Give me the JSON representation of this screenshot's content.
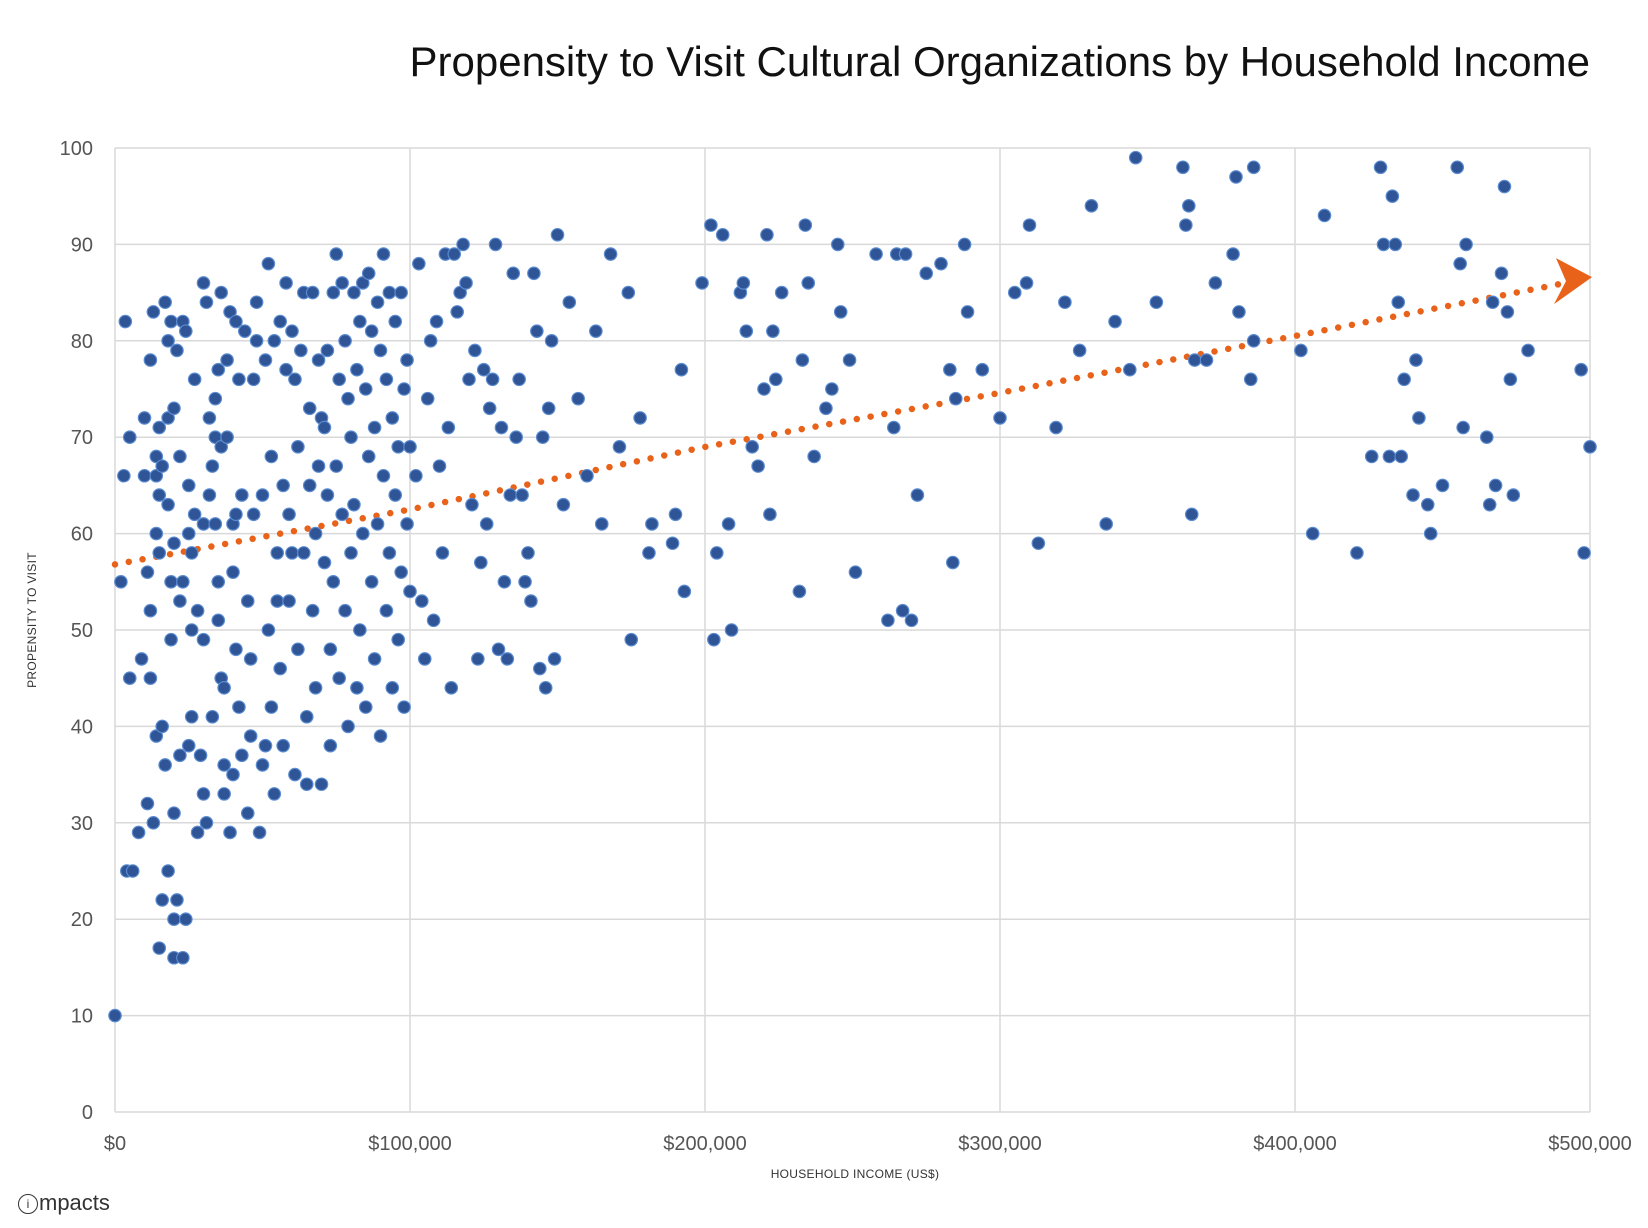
{
  "title": "Propensity to Visit Cultural Organizations by Household Income",
  "logo_text": "mpacts",
  "colors": {
    "point_fill": "#2f5597",
    "point_stroke": "#5b8bd0",
    "trend": "#e8621a",
    "grid": "#d9d9d9"
  },
  "chart_data": {
    "type": "scatter",
    "title": "Propensity to Visit Cultural Organizations by Household Income",
    "xlabel": "HOUSEHOLD INCOME (US$)",
    "ylabel": "PROPENSITY TO VISIT",
    "xlim": [
      0,
      500000
    ],
    "ylim": [
      0,
      100
    ],
    "x_ticks": [
      0,
      100000,
      200000,
      300000,
      400000,
      500000
    ],
    "x_tick_labels": [
      "$0",
      "$100,000",
      "$200,000",
      "$300,000",
      "$400,000",
      "$500,000"
    ],
    "y_ticks": [
      0,
      10,
      20,
      30,
      40,
      50,
      60,
      70,
      80,
      90,
      100
    ],
    "y_tick_labels": [
      "0",
      "10",
      "20",
      "30",
      "40",
      "50",
      "60",
      "70",
      "80",
      "90",
      "100"
    ],
    "grid": true,
    "trendline": {
      "style": "dotted",
      "arrow": true,
      "points": [
        [
          0,
          56.8
        ],
        [
          100000,
          62.5
        ],
        [
          200000,
          69
        ],
        [
          300000,
          74.6
        ],
        [
          400000,
          80.5
        ],
        [
          500000,
          86.5
        ]
      ]
    },
    "points": [
      [
        0,
        10
      ],
      [
        2000,
        55
      ],
      [
        3000,
        66
      ],
      [
        3500,
        82
      ],
      [
        4000,
        25
      ],
      [
        5000,
        45
      ],
      [
        5000,
        70
      ],
      [
        6000,
        25
      ],
      [
        8000,
        29
      ],
      [
        9000,
        47
      ],
      [
        10000,
        66
      ],
      [
        10000,
        72
      ],
      [
        11000,
        32
      ],
      [
        11000,
        56
      ],
      [
        12000,
        52
      ],
      [
        12000,
        78
      ],
      [
        12000,
        45
      ],
      [
        13000,
        30
      ],
      [
        13000,
        83
      ],
      [
        14000,
        39
      ],
      [
        14000,
        68
      ],
      [
        14000,
        60
      ],
      [
        14000,
        66
      ],
      [
        15000,
        17
      ],
      [
        15000,
        64
      ],
      [
        15000,
        58
      ],
      [
        15000,
        71
      ],
      [
        16000,
        40
      ],
      [
        16000,
        22
      ],
      [
        16000,
        67
      ],
      [
        17000,
        84
      ],
      [
        17000,
        36
      ],
      [
        18000,
        25
      ],
      [
        18000,
        72
      ],
      [
        18000,
        80
      ],
      [
        18000,
        63
      ],
      [
        19000,
        55
      ],
      [
        19000,
        82
      ],
      [
        19000,
        49
      ],
      [
        20000,
        20
      ],
      [
        20000,
        16
      ],
      [
        20000,
        31
      ],
      [
        20000,
        73
      ],
      [
        20000,
        59
      ],
      [
        21000,
        79
      ],
      [
        21000,
        22
      ],
      [
        22000,
        68
      ],
      [
        22000,
        53
      ],
      [
        22000,
        37
      ],
      [
        23000,
        16
      ],
      [
        23000,
        82
      ],
      [
        23000,
        55
      ],
      [
        24000,
        20
      ],
      [
        24000,
        81
      ],
      [
        25000,
        38
      ],
      [
        25000,
        65
      ],
      [
        25000,
        60
      ],
      [
        26000,
        41
      ],
      [
        26000,
        50
      ],
      [
        26000,
        58
      ],
      [
        27000,
        76
      ],
      [
        27000,
        62
      ],
      [
        28000,
        29
      ],
      [
        28000,
        52
      ],
      [
        29000,
        37
      ],
      [
        30000,
        86
      ],
      [
        30000,
        61
      ],
      [
        30000,
        33
      ],
      [
        30000,
        49
      ],
      [
        31000,
        84
      ],
      [
        31000,
        30
      ],
      [
        32000,
        72
      ],
      [
        32000,
        64
      ],
      [
        33000,
        41
      ],
      [
        33000,
        67
      ],
      [
        34000,
        74
      ],
      [
        34000,
        70
      ],
      [
        34000,
        61
      ],
      [
        35000,
        77
      ],
      [
        35000,
        55
      ],
      [
        35000,
        51
      ],
      [
        36000,
        85
      ],
      [
        36000,
        45
      ],
      [
        36000,
        69
      ],
      [
        37000,
        33
      ],
      [
        37000,
        36
      ],
      [
        37000,
        44
      ],
      [
        38000,
        70
      ],
      [
        38000,
        78
      ],
      [
        39000,
        83
      ],
      [
        39000,
        29
      ],
      [
        40000,
        61
      ],
      [
        40000,
        35
      ],
      [
        40000,
        56
      ],
      [
        41000,
        82
      ],
      [
        41000,
        48
      ],
      [
        41000,
        62
      ],
      [
        42000,
        76
      ],
      [
        42000,
        42
      ],
      [
        43000,
        37
      ],
      [
        43000,
        64
      ],
      [
        44000,
        81
      ],
      [
        45000,
        53
      ],
      [
        45000,
        31
      ],
      [
        46000,
        39
      ],
      [
        46000,
        47
      ],
      [
        47000,
        62
      ],
      [
        47000,
        76
      ],
      [
        48000,
        80
      ],
      [
        48000,
        84
      ],
      [
        49000,
        29
      ],
      [
        50000,
        64
      ],
      [
        50000,
        36
      ],
      [
        51000,
        78
      ],
      [
        51000,
        38
      ],
      [
        52000,
        88
      ],
      [
        52000,
        50
      ],
      [
        53000,
        68
      ],
      [
        53000,
        42
      ],
      [
        54000,
        80
      ],
      [
        54000,
        33
      ],
      [
        55000,
        53
      ],
      [
        55000,
        58
      ],
      [
        56000,
        82
      ],
      [
        56000,
        46
      ],
      [
        57000,
        65
      ],
      [
        57000,
        38
      ],
      [
        58000,
        77
      ],
      [
        58000,
        86
      ],
      [
        59000,
        62
      ],
      [
        59000,
        53
      ],
      [
        60000,
        81
      ],
      [
        60000,
        58
      ],
      [
        61000,
        76
      ],
      [
        61000,
        35
      ],
      [
        62000,
        69
      ],
      [
        62000,
        48
      ],
      [
        63000,
        79
      ],
      [
        64000,
        85
      ],
      [
        64000,
        58
      ],
      [
        65000,
        41
      ],
      [
        65000,
        34
      ],
      [
        66000,
        73
      ],
      [
        66000,
        65
      ],
      [
        67000,
        52
      ],
      [
        67000,
        85
      ],
      [
        68000,
        60
      ],
      [
        68000,
        44
      ],
      [
        69000,
        78
      ],
      [
        69000,
        67
      ],
      [
        70000,
        72
      ],
      [
        70000,
        34
      ],
      [
        71000,
        71
      ],
      [
        71000,
        57
      ],
      [
        72000,
        64
      ],
      [
        72000,
        79
      ],
      [
        73000,
        38
      ],
      [
        73000,
        48
      ],
      [
        74000,
        85
      ],
      [
        74000,
        55
      ],
      [
        75000,
        89
      ],
      [
        75000,
        67
      ],
      [
        76000,
        76
      ],
      [
        76000,
        45
      ],
      [
        77000,
        86
      ],
      [
        77000,
        62
      ],
      [
        78000,
        80
      ],
      [
        78000,
        52
      ],
      [
        79000,
        74
      ],
      [
        79000,
        40
      ],
      [
        80000,
        70
      ],
      [
        80000,
        58
      ],
      [
        81000,
        85
      ],
      [
        81000,
        63
      ],
      [
        82000,
        77
      ],
      [
        82000,
        44
      ],
      [
        83000,
        82
      ],
      [
        83000,
        50
      ],
      [
        84000,
        86
      ],
      [
        84000,
        60
      ],
      [
        85000,
        75
      ],
      [
        85000,
        42
      ],
      [
        86000,
        87
      ],
      [
        86000,
        68
      ],
      [
        87000,
        81
      ],
      [
        87000,
        55
      ],
      [
        88000,
        71
      ],
      [
        88000,
        47
      ],
      [
        89000,
        84
      ],
      [
        89000,
        61
      ],
      [
        90000,
        79
      ],
      [
        90000,
        39
      ],
      [
        91000,
        89
      ],
      [
        91000,
        66
      ],
      [
        92000,
        76
      ],
      [
        92000,
        52
      ],
      [
        93000,
        85
      ],
      [
        93000,
        58
      ],
      [
        94000,
        72
      ],
      [
        94000,
        44
      ],
      [
        95000,
        82
      ],
      [
        95000,
        64
      ],
      [
        96000,
        69
      ],
      [
        96000,
        49
      ],
      [
        97000,
        85
      ],
      [
        97000,
        56
      ],
      [
        98000,
        75
      ],
      [
        98000,
        42
      ],
      [
        99000,
        78
      ],
      [
        99000,
        61
      ],
      [
        100000,
        69
      ],
      [
        100000,
        54
      ],
      [
        102000,
        66
      ],
      [
        103000,
        88
      ],
      [
        104000,
        53
      ],
      [
        105000,
        47
      ],
      [
        106000,
        74
      ],
      [
        107000,
        80
      ],
      [
        108000,
        51
      ],
      [
        109000,
        82
      ],
      [
        110000,
        67
      ],
      [
        111000,
        58
      ],
      [
        112000,
        89
      ],
      [
        113000,
        71
      ],
      [
        114000,
        44
      ],
      [
        115000,
        89
      ],
      [
        116000,
        83
      ],
      [
        117000,
        85
      ],
      [
        118000,
        90
      ],
      [
        119000,
        86
      ],
      [
        120000,
        76
      ],
      [
        121000,
        63
      ],
      [
        122000,
        79
      ],
      [
        123000,
        47
      ],
      [
        124000,
        57
      ],
      [
        125000,
        77
      ],
      [
        126000,
        61
      ],
      [
        127000,
        73
      ],
      [
        128000,
        76
      ],
      [
        129000,
        90
      ],
      [
        130000,
        48
      ],
      [
        131000,
        71
      ],
      [
        132000,
        55
      ],
      [
        133000,
        47
      ],
      [
        134000,
        64
      ],
      [
        135000,
        87
      ],
      [
        136000,
        70
      ],
      [
        137000,
        76
      ],
      [
        138000,
        64
      ],
      [
        139000,
        55
      ],
      [
        140000,
        58
      ],
      [
        141000,
        53
      ],
      [
        142000,
        87
      ],
      [
        143000,
        81
      ],
      [
        144000,
        46
      ],
      [
        145000,
        70
      ],
      [
        146000,
        44
      ],
      [
        147000,
        73
      ],
      [
        148000,
        80
      ],
      [
        149000,
        47
      ],
      [
        150000,
        91
      ],
      [
        152000,
        63
      ],
      [
        154000,
        84
      ],
      [
        157000,
        74
      ],
      [
        160000,
        66
      ],
      [
        163000,
        81
      ],
      [
        165000,
        61
      ],
      [
        168000,
        89
      ],
      [
        171000,
        69
      ],
      [
        174000,
        85
      ],
      [
        175000,
        49
      ],
      [
        178000,
        72
      ],
      [
        181000,
        58
      ],
      [
        182000,
        61
      ],
      [
        189000,
        59
      ],
      [
        190000,
        62
      ],
      [
        192000,
        77
      ],
      [
        193000,
        54
      ],
      [
        199000,
        86
      ],
      [
        202000,
        92
      ],
      [
        203000,
        49
      ],
      [
        204000,
        58
      ],
      [
        206000,
        91
      ],
      [
        208000,
        61
      ],
      [
        209000,
        50
      ],
      [
        212000,
        85
      ],
      [
        213000,
        86
      ],
      [
        214000,
        81
      ],
      [
        216000,
        69
      ],
      [
        218000,
        67
      ],
      [
        220000,
        75
      ],
      [
        221000,
        91
      ],
      [
        222000,
        62
      ],
      [
        223000,
        81
      ],
      [
        224000,
        76
      ],
      [
        226000,
        85
      ],
      [
        232000,
        54
      ],
      [
        233000,
        78
      ],
      [
        234000,
        92
      ],
      [
        235000,
        86
      ],
      [
        237000,
        68
      ],
      [
        241000,
        73
      ],
      [
        243000,
        75
      ],
      [
        245000,
        90
      ],
      [
        246000,
        83
      ],
      [
        249000,
        78
      ],
      [
        251000,
        56
      ],
      [
        258000,
        89
      ],
      [
        262000,
        51
      ],
      [
        264000,
        71
      ],
      [
        265000,
        89
      ],
      [
        267000,
        52
      ],
      [
        268000,
        89
      ],
      [
        270000,
        51
      ],
      [
        272000,
        64
      ],
      [
        275000,
        87
      ],
      [
        280000,
        88
      ],
      [
        283000,
        77
      ],
      [
        284000,
        57
      ],
      [
        285000,
        74
      ],
      [
        288000,
        90
      ],
      [
        289000,
        83
      ],
      [
        294000,
        77
      ],
      [
        300000,
        72
      ],
      [
        305000,
        85
      ],
      [
        309000,
        86
      ],
      [
        310000,
        92
      ],
      [
        313000,
        59
      ],
      [
        319000,
        71
      ],
      [
        322000,
        84
      ],
      [
        327000,
        79
      ],
      [
        331000,
        94
      ],
      [
        336000,
        61
      ],
      [
        339000,
        82
      ],
      [
        344000,
        77
      ],
      [
        346000,
        99
      ],
      [
        353000,
        84
      ],
      [
        362000,
        98
      ],
      [
        363000,
        92
      ],
      [
        364000,
        94
      ],
      [
        365000,
        62
      ],
      [
        366000,
        78
      ],
      [
        370000,
        78
      ],
      [
        373000,
        86
      ],
      [
        379000,
        89
      ],
      [
        380000,
        97
      ],
      [
        381000,
        83
      ],
      [
        385000,
        76
      ],
      [
        386000,
        80
      ],
      [
        386000,
        98
      ],
      [
        402000,
        79
      ],
      [
        406000,
        60
      ],
      [
        410000,
        93
      ],
      [
        421000,
        58
      ],
      [
        426000,
        68
      ],
      [
        429000,
        98
      ],
      [
        430000,
        90
      ],
      [
        432000,
        68
      ],
      [
        433000,
        95
      ],
      [
        434000,
        90
      ],
      [
        435000,
        84
      ],
      [
        436000,
        68
      ],
      [
        437000,
        76
      ],
      [
        440000,
        64
      ],
      [
        441000,
        78
      ],
      [
        442000,
        72
      ],
      [
        445000,
        63
      ],
      [
        446000,
        60
      ],
      [
        450000,
        65
      ],
      [
        455000,
        98
      ],
      [
        456000,
        88
      ],
      [
        457000,
        71
      ],
      [
        458000,
        90
      ],
      [
        465000,
        70
      ],
      [
        466000,
        63
      ],
      [
        467000,
        84
      ],
      [
        468000,
        65
      ],
      [
        470000,
        87
      ],
      [
        471000,
        96
      ],
      [
        472000,
        83
      ],
      [
        473000,
        76
      ],
      [
        474000,
        64
      ],
      [
        479000,
        79
      ],
      [
        497000,
        77
      ],
      [
        498000,
        58
      ],
      [
        500000,
        69
      ]
    ]
  }
}
